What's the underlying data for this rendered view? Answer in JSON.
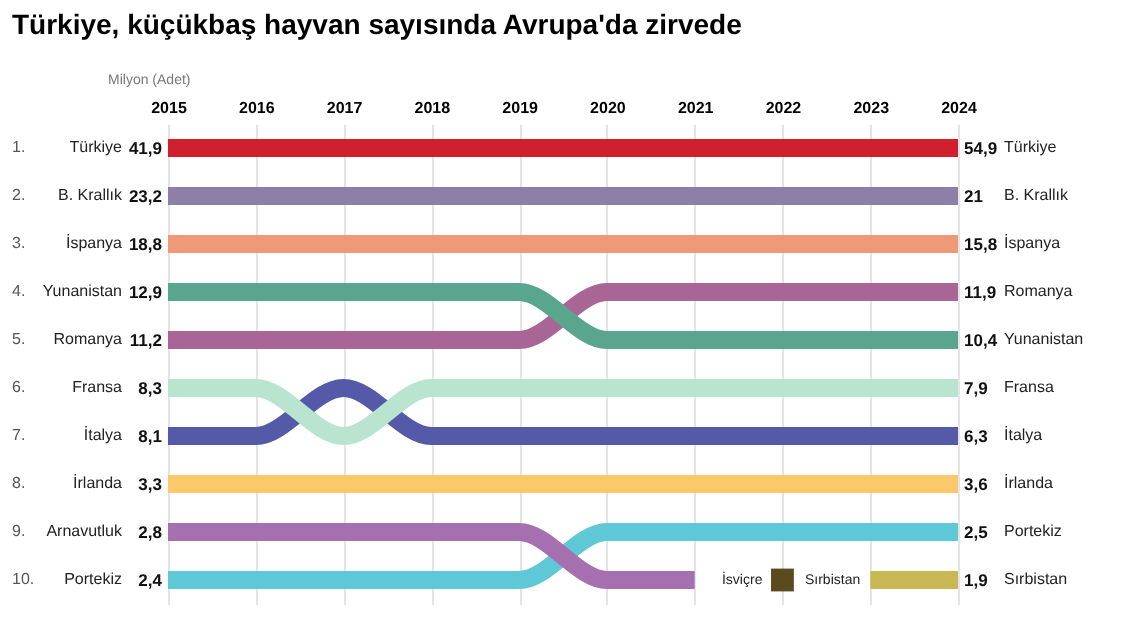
{
  "chart_data": {
    "type": "line",
    "title": "Türkiye, küçükbaş hayvan sayısında Avrupa'da zirvede",
    "subtitle": "Milyon (Adet)",
    "categories": [
      "2015",
      "2016",
      "2017",
      "2018",
      "2019",
      "2020",
      "2021",
      "2022",
      "2023",
      "2024"
    ],
    "series": [
      {
        "name": "Türkiye",
        "color": "#d0202e",
        "values": [
          1,
          1,
          1,
          1,
          1,
          1,
          1,
          1,
          1,
          1
        ]
      },
      {
        "name": "B. Krallık",
        "color": "#8c7fa8",
        "values": [
          2,
          2,
          2,
          2,
          2,
          2,
          2,
          2,
          2,
          2
        ]
      },
      {
        "name": "İspanya",
        "color": "#ee9a78",
        "values": [
          3,
          3,
          3,
          3,
          3,
          3,
          3,
          3,
          3,
          3
        ]
      },
      {
        "name": "Romanya",
        "color": "#a96595",
        "values": [
          5,
          5,
          5,
          5,
          5,
          4,
          4,
          4,
          4,
          4
        ]
      },
      {
        "name": "Yunanistan",
        "color": "#5aa58e",
        "values": [
          4,
          4,
          4,
          4,
          4,
          5,
          5,
          5,
          5,
          5
        ]
      },
      {
        "name": "İtalya",
        "color": "#5459a8",
        "values": [
          7,
          7,
          6,
          7,
          7,
          7,
          7,
          7,
          7,
          7
        ]
      },
      {
        "name": "Fransa",
        "color": "#b9e4d0",
        "values": [
          6,
          6,
          7,
          6,
          6,
          6,
          6,
          6,
          6,
          6
        ]
      },
      {
        "name": "İrlanda",
        "color": "#fbc96a",
        "values": [
          8,
          8,
          8,
          8,
          8,
          8,
          8,
          8,
          8,
          8
        ]
      },
      {
        "name": "Portekiz",
        "color": "#5ec8d6",
        "values": [
          10,
          10,
          10,
          10,
          10,
          9,
          9,
          9,
          9,
          9
        ]
      },
      {
        "name": "Arnavutluk",
        "color": "#a670b0",
        "values": [
          9,
          9,
          9,
          9,
          9,
          10,
          10,
          null,
          null,
          null
        ]
      },
      {
        "name": "İsviçre",
        "color": "#5a4a1e",
        "type": "scatter",
        "marker": "square",
        "values": [
          null,
          null,
          null,
          null,
          null,
          null,
          null,
          10,
          null,
          null
        ]
      },
      {
        "name": "Sırbistan",
        "color": "#c8b955",
        "values": [
          null,
          null,
          null,
          null,
          null,
          null,
          null,
          null,
          10,
          10
        ]
      }
    ],
    "ylim": [
      10.5,
      0.5
    ],
    "yticks": [
      {
        "value": 1,
        "label": "1."
      },
      {
        "value": 2,
        "label": "2."
      },
      {
        "value": 3,
        "label": "3."
      },
      {
        "value": 4,
        "label": "4."
      },
      {
        "value": 5,
        "label": "5."
      },
      {
        "value": 6,
        "label": "6."
      },
      {
        "value": 7,
        "label": "7."
      },
      {
        "value": 8,
        "label": "8."
      },
      {
        "value": 9,
        "label": "9."
      },
      {
        "value": 10,
        "label": "10."
      }
    ],
    "grid": "x",
    "annotations": [
      {
        "text": "41,9",
        "x": "2015",
        "y": 1
      },
      {
        "text": "23,2",
        "x": "2015",
        "y": 2
      },
      {
        "text": "18,8",
        "x": "2015",
        "y": 3
      },
      {
        "text": "12,9",
        "x": "2015",
        "y": 4
      },
      {
        "text": "11,2",
        "x": "2015",
        "y": 5
      },
      {
        "text": "8,3",
        "x": "2015",
        "y": 6
      },
      {
        "text": "8,1",
        "x": "2015",
        "y": 7
      },
      {
        "text": "3,3",
        "x": "2015",
        "y": 8
      },
      {
        "text": "2,8",
        "x": "2015",
        "y": 9
      },
      {
        "text": "2,4",
        "x": "2015",
        "y": 10
      },
      {
        "text": "54,9",
        "x": "2024",
        "y": 1
      },
      {
        "text": "21",
        "x": "2024",
        "y": 2
      },
      {
        "text": "15,8",
        "x": "2024",
        "y": 3
      },
      {
        "text": "11,9",
        "x": "2024",
        "y": 4
      },
      {
        "text": "10,4",
        "x": "2024",
        "y": 5
      },
      {
        "text": "7,9",
        "x": "2024",
        "y": 6
      },
      {
        "text": "6,3",
        "x": "2024",
        "y": 7
      },
      {
        "text": "3,6",
        "x": "2024",
        "y": 8
      },
      {
        "text": "2,5",
        "x": "2024",
        "y": 9
      },
      {
        "text": "1,9",
        "x": "2024",
        "y": 10
      }
    ]
  }
}
